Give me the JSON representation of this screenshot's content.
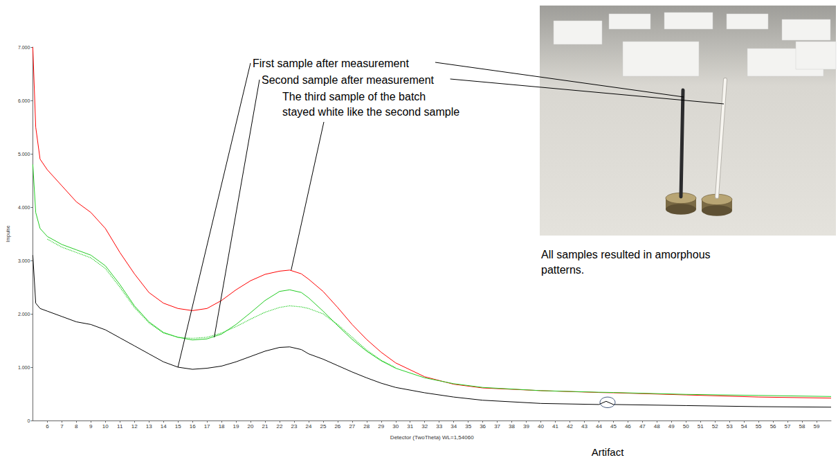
{
  "chart_data": {
    "type": "line",
    "x_label": "Detector (TwoTheta) WL=1,54060",
    "y_label": "Impulse",
    "x": [
      5,
      5.2,
      5.5,
      6,
      7,
      8,
      9,
      10,
      11,
      12,
      13,
      14,
      15,
      16,
      17,
      18,
      19,
      20,
      21,
      22,
      22.7,
      23.5,
      24,
      25,
      26,
      27,
      28,
      29,
      30,
      32,
      34,
      36,
      40,
      44,
      44.5,
      45,
      50,
      55,
      60
    ],
    "series": [
      {
        "color": "#ff0000",
        "line_style": "solid",
        "values": [
          7000,
          5500,
          4900,
          4700,
          4400,
          4100,
          3900,
          3600,
          3150,
          2750,
          2400,
          2200,
          2100,
          2060,
          2100,
          2250,
          2450,
          2620,
          2740,
          2800,
          2820,
          2750,
          2650,
          2420,
          2120,
          1800,
          1520,
          1280,
          1080,
          820,
          680,
          610,
          560,
          525,
          522,
          520,
          480,
          440,
          420
        ]
      },
      {
        "color": "#22cc22",
        "line_style": "solid",
        "values": [
          4800,
          3900,
          3600,
          3450,
          3300,
          3200,
          3100,
          2900,
          2550,
          2150,
          1850,
          1650,
          1560,
          1510,
          1530,
          1620,
          1800,
          2020,
          2250,
          2420,
          2450,
          2400,
          2300,
          2050,
          1780,
          1520,
          1300,
          1120,
          980,
          800,
          690,
          620,
          560,
          530,
          528,
          525,
          490,
          470,
          450
        ]
      },
      {
        "color": "#22cc22",
        "line_style": "dotted",
        "values": [
          null,
          null,
          null,
          3400,
          3250,
          3150,
          3050,
          2850,
          2500,
          2120,
          1830,
          1640,
          1560,
          1540,
          1560,
          1640,
          1760,
          1900,
          2030,
          2120,
          2150,
          2130,
          2100,
          2000,
          1800,
          1560,
          1320,
          1130,
          990,
          null,
          null,
          null,
          null,
          null,
          null,
          null,
          null,
          null,
          null
        ]
      },
      {
        "color": "#000000",
        "line_style": "solid",
        "values": [
          3100,
          2200,
          2100,
          2050,
          1950,
          1850,
          1800,
          1700,
          1550,
          1400,
          1250,
          1100,
          1000,
          960,
          980,
          1020,
          1100,
          1200,
          1300,
          1370,
          1380,
          1330,
          1250,
          1150,
          1030,
          910,
          800,
          700,
          620,
          520,
          440,
          380,
          320,
          300,
          360,
          300,
          280,
          260,
          250
        ]
      }
    ],
    "xlim": [
      5,
      60
    ],
    "xticks": [
      6,
      7,
      8,
      9,
      10,
      11,
      12,
      13,
      14,
      15,
      16,
      17,
      18,
      19,
      20,
      21,
      22,
      23,
      24,
      25,
      26,
      27,
      28,
      29,
      30,
      31,
      32,
      33,
      34,
      35,
      36,
      37,
      38,
      39,
      40,
      41,
      42,
      43,
      44,
      45,
      46,
      47,
      48,
      49,
      50,
      51,
      52,
      53,
      54,
      55,
      56,
      57,
      58,
      59
    ],
    "ylim": [
      0,
      7000
    ],
    "yticks": [
      0,
      {
        "value": 1000,
        "label": "1.000"
      },
      {
        "value": 2000,
        "label": "2.000"
      },
      {
        "value": 3000,
        "label": "3.000"
      },
      {
        "value": 4000,
        "label": "4.000"
      },
      {
        "value": 5000,
        "label": "5.000"
      },
      {
        "value": 6000,
        "label": "6.000"
      },
      {
        "value": 7000,
        "label": "7.000"
      }
    ],
    "grid": false,
    "annotations": [
      {
        "text": "First sample after measurement",
        "x": 15,
        "y": 1000
      },
      {
        "text": "Second sample after measurement",
        "x": 17.5,
        "y": 1560
      },
      {
        "text": "The third sample of the batch\nstayed white like the second sample",
        "x": 22.8,
        "y": 2820
      },
      {
        "text": "Artifact",
        "x": 44.6,
        "y": 340
      }
    ],
    "note": "All samples resulted in amorphous\npatterns."
  }
}
